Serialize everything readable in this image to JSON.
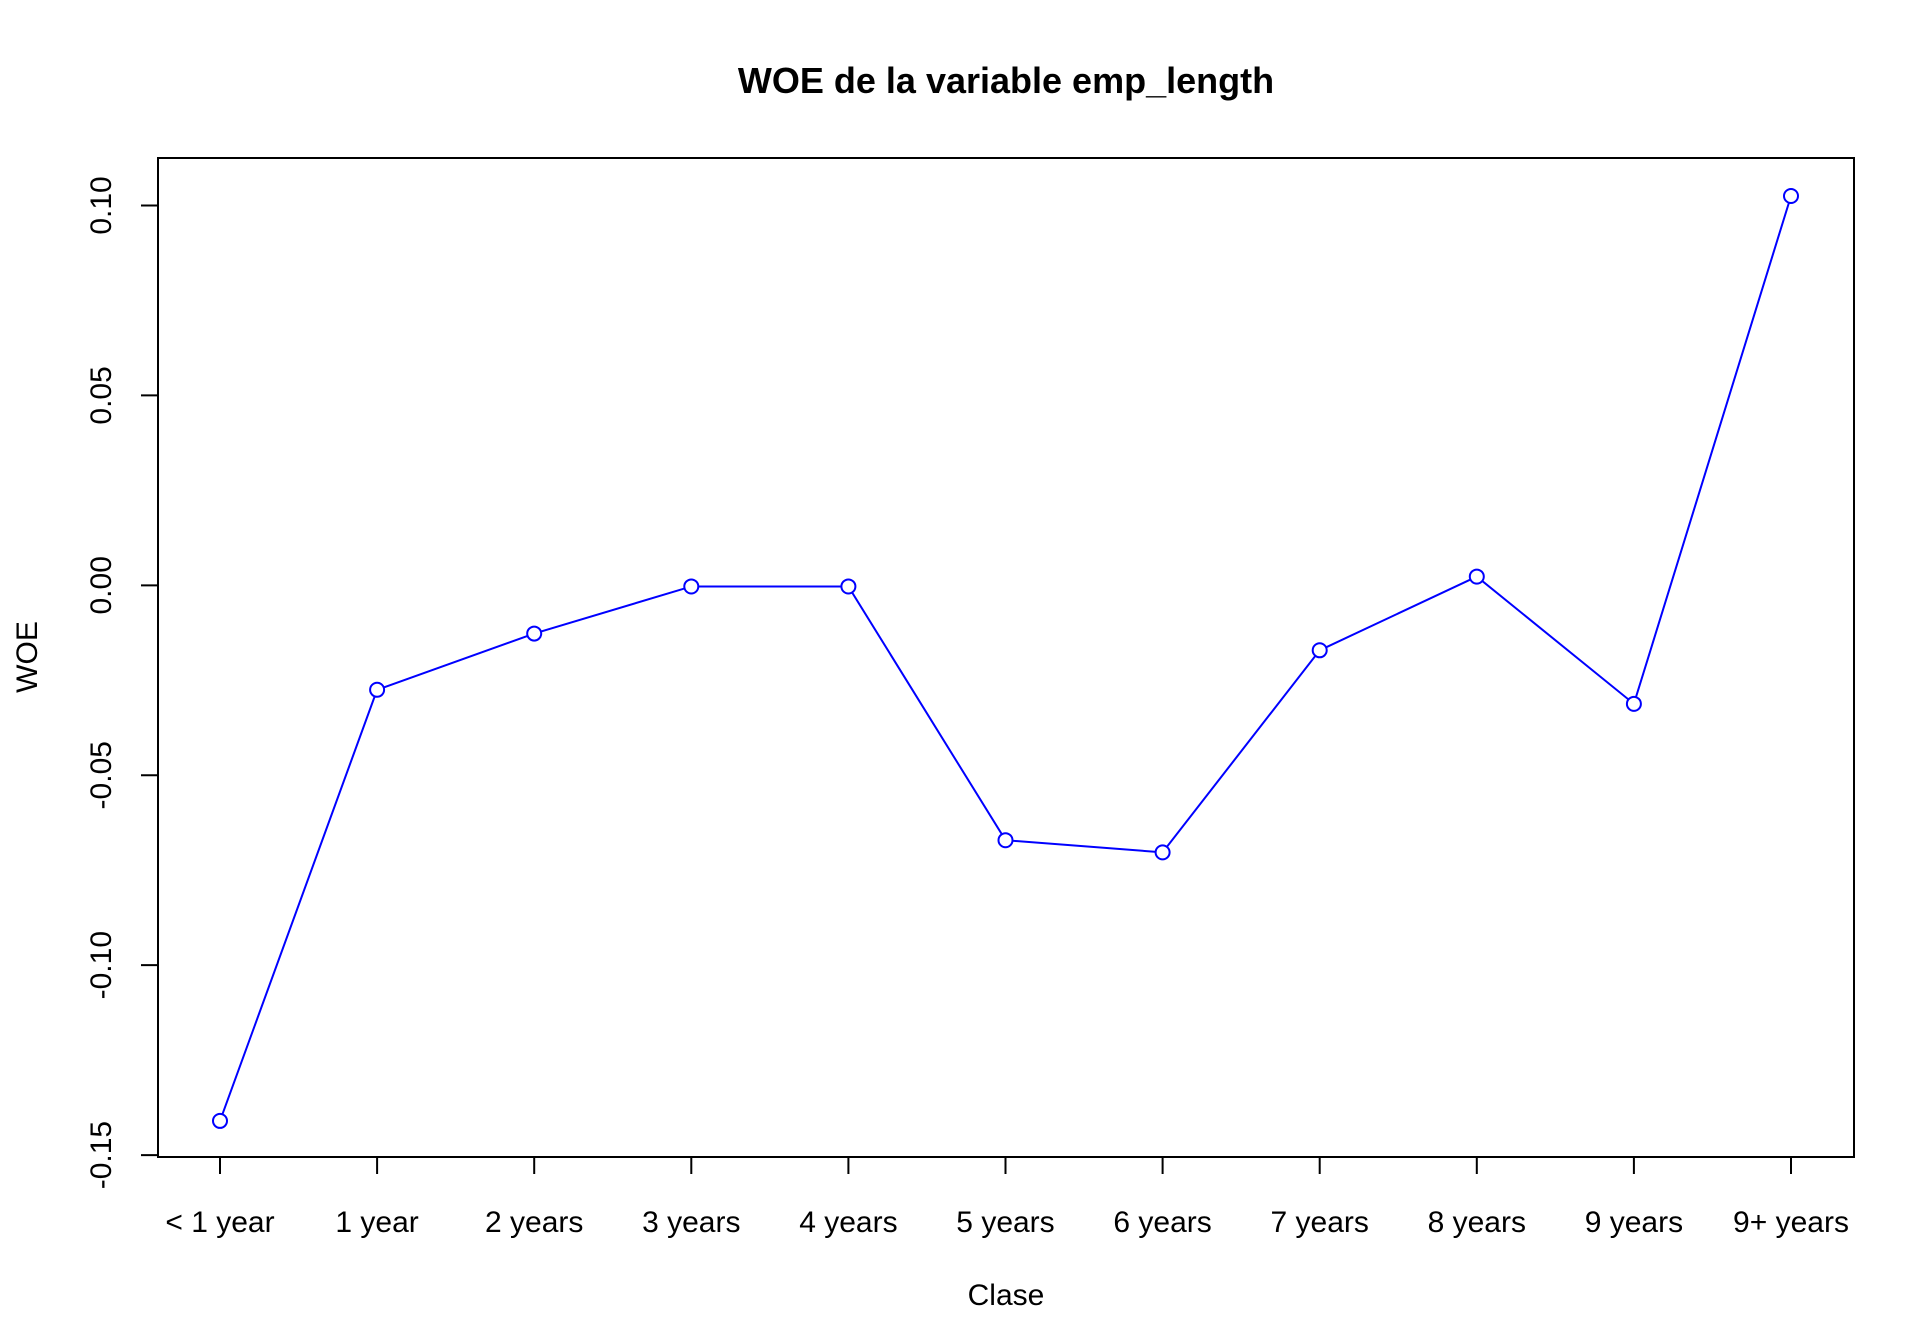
{
  "chart_data": {
    "type": "line",
    "title": "WOE de la variable emp_length",
    "xlabel": "Clase",
    "ylabel": "WOE",
    "categories": [
      "< 1 year",
      "1 year",
      "2 years",
      "3 years",
      "4 years",
      "5 years",
      "6 years",
      "7 years",
      "8 years",
      "9 years",
      "9+ years"
    ],
    "series": [
      {
        "values": [
          -0.141,
          -0.0275,
          -0.0127,
          -0.0003,
          -0.0003,
          -0.0671,
          -0.0703,
          -0.0171,
          0.0023,
          -0.0312,
          0.1025
        ]
      }
    ],
    "yticks": [
      "-0.15",
      "-0.10",
      "-0.05",
      "0.00",
      "0.05",
      "0.10"
    ],
    "ylim": [
      -0.1505,
      0.1125
    ],
    "grid": false,
    "line_color": "#0000ff",
    "marker": "open-circle"
  }
}
